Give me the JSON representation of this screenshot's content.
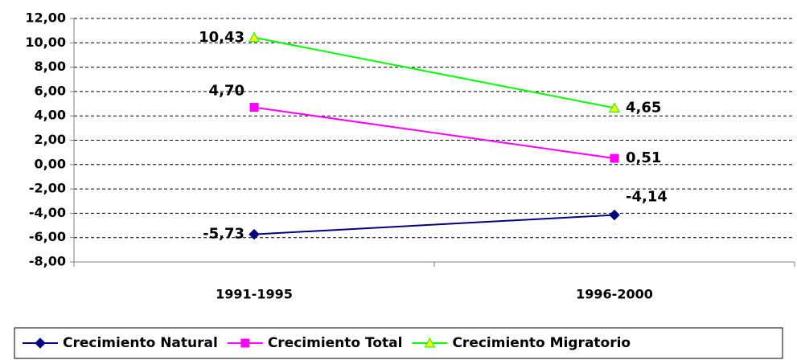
{
  "chart_data": {
    "type": "line",
    "categories": [
      "1991-1995",
      "1996-2000"
    ],
    "series": [
      {
        "name": "Crecimiento Natural",
        "color": "#000080",
        "marker": "diamond",
        "marker_color": "#000080",
        "values": [
          -5.73,
          -4.14
        ],
        "value_labels": [
          "-5,73",
          "-4,14"
        ]
      },
      {
        "name": "Crecimiento Total",
        "color": "#ff00ff",
        "marker": "square",
        "marker_color": "#ff00ff",
        "values": [
          4.7,
          0.51
        ],
        "value_labels": [
          "4,70",
          "0,51"
        ]
      },
      {
        "name": "Crecimiento Migratorio",
        "color": "#00ff00",
        "marker": "triangle",
        "marker_color": "#ffff00",
        "values": [
          10.43,
          4.65
        ],
        "value_labels": [
          "10,43",
          "4,65"
        ]
      }
    ],
    "ylim": [
      -8,
      12
    ],
    "yticks": [
      {
        "value": -8,
        "label": "-8,00"
      },
      {
        "value": -6,
        "label": "-6,00"
      },
      {
        "value": -4,
        "label": "-4,00"
      },
      {
        "value": -2,
        "label": "-2,00"
      },
      {
        "value": 0,
        "label": "0,00"
      },
      {
        "value": 2,
        "label": "2,00"
      },
      {
        "value": 4,
        "label": "4,00"
      },
      {
        "value": 6,
        "label": "6,00"
      },
      {
        "value": 8,
        "label": "8,00"
      },
      {
        "value": 10,
        "label": "10,00"
      },
      {
        "value": 12,
        "label": "12,00"
      }
    ],
    "grid": true,
    "legend": "bottom"
  }
}
